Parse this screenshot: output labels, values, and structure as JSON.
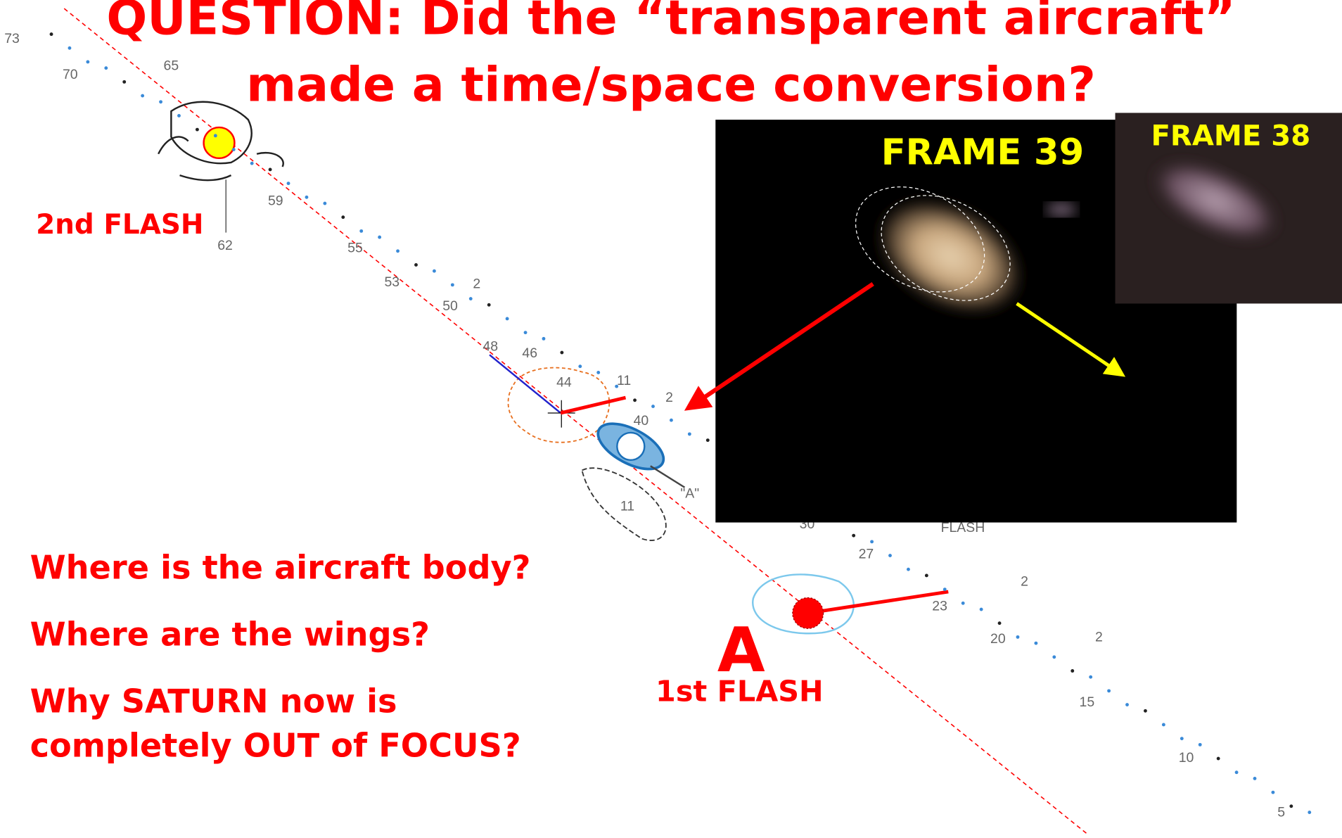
{
  "title": {
    "line1": "QUESTION: Did the “transparent aircraft”",
    "line2": "made a time/space conversion?"
  },
  "labels": {
    "second_flash": "2nd FLASH",
    "first_flash": "1st FLASH",
    "point_a": "A"
  },
  "frames": [
    {
      "label": "FRAME 39"
    },
    {
      "label": "FRAME 38"
    }
  ],
  "questions": [
    {
      "lines": [
        "Where is the aircraft body?"
      ]
    },
    {
      "lines": [
        "Where are the wings?"
      ]
    },
    {
      "lines": [
        "Why SATURN now is",
        "completely OUT of FOCUS?"
      ]
    }
  ],
  "sketch_numbers": [
    "73",
    "70",
    "65",
    "59",
    "62",
    "55",
    "53",
    "2",
    "50",
    "48",
    "46",
    "44",
    "11",
    "40",
    "2",
    "11",
    "\"A\"",
    "30",
    "27",
    "FLASH",
    "23",
    "2",
    "20",
    "2",
    "15",
    "10",
    "5"
  ]
}
